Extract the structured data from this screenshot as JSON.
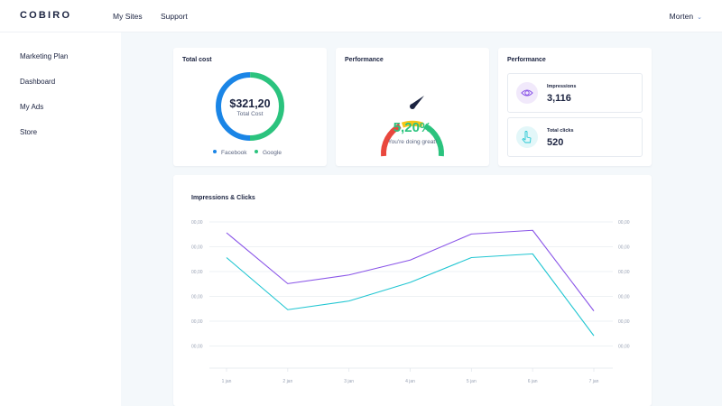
{
  "header": {
    "logo": "COBIRO",
    "nav": [
      "My Sites",
      "Support"
    ],
    "user": "Morten",
    "user_chevron_icon": "chevron-down-icon"
  },
  "sidebar": {
    "items": [
      {
        "label": "Marketing Plan"
      },
      {
        "label": "Dashboard"
      },
      {
        "label": "My Ads"
      },
      {
        "label": "Store"
      }
    ]
  },
  "total_cost": {
    "title": "Total cost",
    "amount": "$321,20",
    "subtitle": "Total Cost",
    "segments": [
      {
        "name": "Facebook",
        "fraction": 0.5,
        "color": "#1a85e6"
      },
      {
        "name": "Google",
        "fraction": 0.5,
        "color": "#2bc37e"
      }
    ]
  },
  "performance_gauge": {
    "title": "Performance",
    "value": "5,20%",
    "message": "You're doing great!",
    "colors": [
      "#e9473d",
      "#f7c516",
      "#2bc37e"
    ],
    "needle_icon": "gauge-needle-icon"
  },
  "performance_stats": {
    "title": "Performance",
    "impressions_label": "Impressions",
    "impressions_value": "3,116",
    "impressions_icon": "eye-icon",
    "clicks_label": "Total clicks",
    "clicks_value": "520",
    "clicks_icon": "pointer-icon"
  },
  "chart_data": {
    "type": "line",
    "title": "Impressions & Clicks",
    "x": [
      "1 jan",
      "2 jan",
      "3 jan",
      "4 jan",
      "5 jan",
      "6 jan",
      "7 jan"
    ],
    "y_tick_labels": [
      "00,00",
      "00,00",
      "00,00",
      "00,00",
      "00,00",
      "00,00"
    ],
    "y_range": [
      0,
      6
    ],
    "series": [
      {
        "values": [
          4.6,
          2.55,
          2.9,
          3.5,
          4.55,
          4.7,
          1.45
        ],
        "color": "#8a55e8"
      },
      {
        "values": [
          3.6,
          1.5,
          1.85,
          2.6,
          3.6,
          3.75,
          0.45
        ],
        "color": "#22c6d2"
      }
    ],
    "grid": true,
    "legend": "none"
  }
}
